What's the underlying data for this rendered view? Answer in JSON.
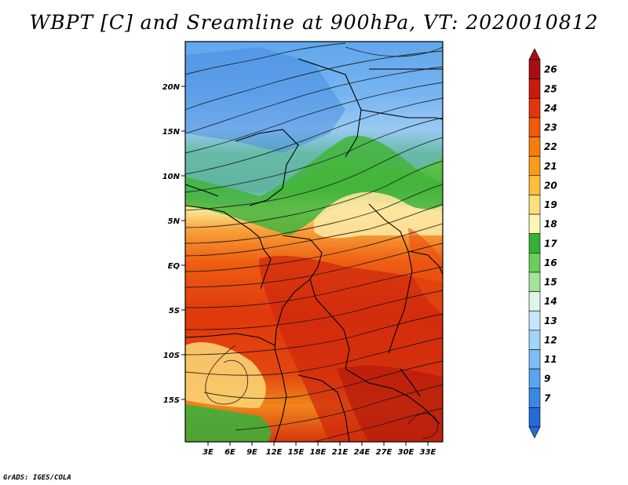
{
  "title": "WBPT [C] and Sreamline at 900hPa, VT: 2020010812",
  "credit": "GrADS: IGES/COLA",
  "map": {
    "lat_ticks": [
      "20N",
      "15N",
      "10N",
      "5N",
      "EQ",
      "5S",
      "10S",
      "15S"
    ],
    "lon_ticks": [
      "3E",
      "6E",
      "9E",
      "12E",
      "15E",
      "18E",
      "21E",
      "24E",
      "27E",
      "30E",
      "33E"
    ]
  },
  "colorbar": {
    "labels": [
      "26",
      "25",
      "24",
      "23",
      "22",
      "21",
      "20",
      "19",
      "18",
      "17",
      "16",
      "15",
      "14",
      "13",
      "12",
      "11",
      "9",
      "7"
    ],
    "colors": [
      "#a50f15",
      "#c81b0e",
      "#e3360c",
      "#f05a0a",
      "#f57d0c",
      "#f99c1a",
      "#fbbe3e",
      "#fde07b",
      "#fdf5b5",
      "#34b233",
      "#6bcd5b",
      "#a6e39a",
      "#dff5ea",
      "#c7e6fb",
      "#a3d4fa",
      "#7dbdf7",
      "#5aa5f2",
      "#3b87e6",
      "#2669d8"
    ]
  }
}
